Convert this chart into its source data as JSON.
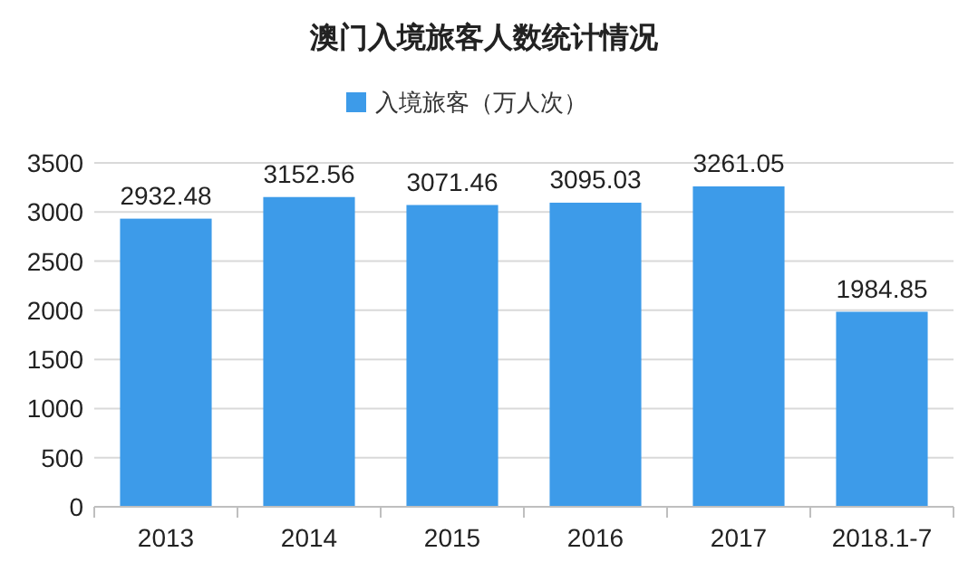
{
  "chart_data": {
    "type": "bar",
    "title": "澳门入境旅客人数统计情况",
    "categories": [
      "2013",
      "2014",
      "2015",
      "2016",
      "2017",
      "2018.1-7"
    ],
    "series": [
      {
        "name": "入境旅客（万人次）",
        "color": "#3d9be9",
        "values": [
          2932.48,
          3152.56,
          3071.46,
          3095.03,
          3261.05,
          1984.85
        ]
      }
    ],
    "ylim": [
      0,
      3500
    ],
    "yticks": [
      0,
      500,
      1000,
      1500,
      2000,
      2500,
      3000,
      3500
    ],
    "grid": "y",
    "legend": "top",
    "data_labels": true
  }
}
